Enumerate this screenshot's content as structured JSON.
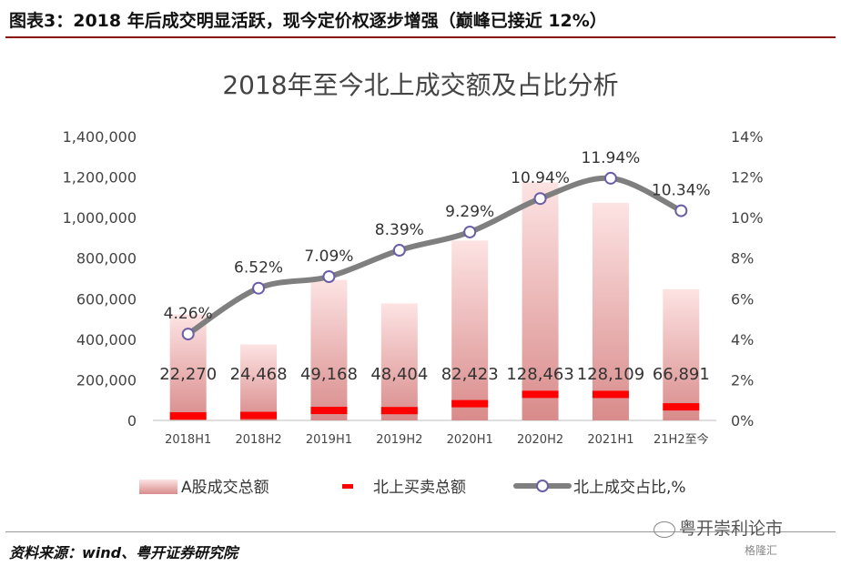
{
  "header": {
    "title": "图表3：2018 年后成交明显活跃，现今定价权逐步增强（巅峰已接近 12%）"
  },
  "footer": {
    "source": "资料来源：wind、粤开证券研究院",
    "watermark": "粤开崇利论市",
    "brand": "格隆汇"
  },
  "colors": {
    "bar_top": "#fde3e3",
    "bar_bottom": "#d98b8b",
    "marker": "#ff0000",
    "line": "#7f7f7f",
    "point_fill": "#ffffff",
    "point_stroke": "#6b5ea8"
  },
  "chart_data": {
    "type": "bar",
    "title": "2018年至今北上成交额及占比分析",
    "categories": [
      "2018H1",
      "2018H2",
      "2019H1",
      "2019H2",
      "2020H1",
      "2020H2",
      "2021H1",
      "21H2至今"
    ],
    "series": [
      {
        "name": "A股成交总额",
        "type": "bar",
        "axis": "left",
        "values": [
          522770,
          375000,
          693000,
          577000,
          887000,
          1174000,
          1073000,
          647000
        ]
      },
      {
        "name": "北上买卖总额",
        "type": "marker",
        "axis": "left",
        "values": [
          22270,
          24468,
          49168,
          48404,
          82423,
          128463,
          128109,
          66891
        ],
        "labels": [
          "22,270",
          "24,468",
          "49,168",
          "48,404",
          "82,423",
          "128,463",
          "128,109",
          "66,891"
        ]
      },
      {
        "name": "北上成交占比,%",
        "type": "line",
        "axis": "right",
        "values": [
          4.26,
          6.52,
          7.09,
          8.39,
          9.29,
          10.94,
          11.94,
          10.34
        ],
        "labels": [
          "4.26%",
          "6.52%",
          "7.09%",
          "8.39%",
          "9.29%",
          "10.94%",
          "11.94%",
          "10.34%"
        ]
      }
    ],
    "y_left": {
      "min": 0,
      "max": 1400000,
      "step": 200000,
      "tick_labels": [
        "0",
        "200,000",
        "400,000",
        "600,000",
        "800,000",
        "1,000,000",
        "1,200,000",
        "1,400,000"
      ]
    },
    "y_right": {
      "min": 0,
      "max": 14,
      "step": 2,
      "tick_labels": [
        "0%",
        "2%",
        "4%",
        "6%",
        "8%",
        "10%",
        "12%",
        "14%"
      ]
    },
    "grid": false,
    "legend_position": "bottom"
  }
}
